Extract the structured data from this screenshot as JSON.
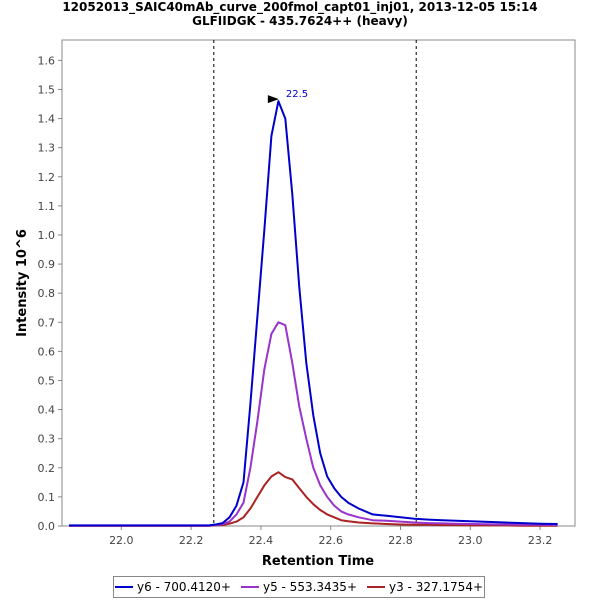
{
  "chart_data": {
    "type": "line",
    "title": "12052013_SAIC40mAb_curve_200fmol_capt01_inj01, 2013-12-05 15:14",
    "subtitle": "GLFIIDGK - 435.7624++ (heavy)",
    "xlabel": "Retention Time",
    "ylabel": "Intensity 10^6",
    "xlim": [
      21.83,
      23.3
    ],
    "ylim": [
      0,
      1.67
    ],
    "x_ticks": [
      22.0,
      22.2,
      22.4,
      22.6,
      22.8,
      23.0,
      23.2
    ],
    "y_ticks": [
      0.0,
      0.1,
      0.2,
      0.3,
      0.4,
      0.5,
      0.6,
      0.7,
      0.8,
      0.9,
      1.0,
      1.1,
      1.2,
      1.3,
      1.4,
      1.5,
      1.6
    ],
    "x_tick_labels": [
      "22.0",
      "22.2",
      "22.4",
      "22.6",
      "22.8",
      "23.0",
      "23.2"
    ],
    "y_tick_labels": [
      "0.0",
      "0.1",
      "0.2",
      "0.3",
      "0.4",
      "0.5",
      "0.6",
      "0.7",
      "0.8",
      "0.9",
      "1.0",
      "1.1",
      "1.2",
      "1.3",
      "1.4",
      "1.5",
      "1.6"
    ],
    "integration_boundaries": [
      22.265,
      22.845
    ],
    "peak_annotation": {
      "x": 22.46,
      "y": 1.46,
      "label": "22.5"
    },
    "legend_position": "bottom",
    "grid": false,
    "series": [
      {
        "name": "y6 - 700.4120+",
        "color": "#0000cc",
        "x": [
          21.85,
          21.9,
          21.95,
          22.0,
          22.05,
          22.1,
          22.15,
          22.2,
          22.25,
          22.27,
          22.29,
          22.31,
          22.33,
          22.35,
          22.37,
          22.39,
          22.41,
          22.43,
          22.45,
          22.47,
          22.49,
          22.51,
          22.53,
          22.55,
          22.57,
          22.59,
          22.61,
          22.63,
          22.65,
          22.68,
          22.72,
          22.76,
          22.8,
          22.84,
          22.88,
          22.92,
          22.96,
          23.0,
          23.05,
          23.1,
          23.15,
          23.2,
          23.25
        ],
        "y": [
          0.002,
          0.002,
          0.002,
          0.002,
          0.002,
          0.002,
          0.002,
          0.002,
          0.002,
          0.005,
          0.01,
          0.03,
          0.07,
          0.15,
          0.42,
          0.72,
          1.02,
          1.34,
          1.46,
          1.4,
          1.14,
          0.82,
          0.56,
          0.38,
          0.25,
          0.17,
          0.13,
          0.1,
          0.08,
          0.06,
          0.04,
          0.035,
          0.03,
          0.025,
          0.022,
          0.02,
          0.018,
          0.016,
          0.014,
          0.012,
          0.01,
          0.008,
          0.007
        ]
      },
      {
        "name": "y5 - 553.3435+",
        "color": "#9933cc",
        "x": [
          21.85,
          21.9,
          21.95,
          22.0,
          22.05,
          22.1,
          22.15,
          22.2,
          22.25,
          22.27,
          22.29,
          22.31,
          22.33,
          22.35,
          22.37,
          22.39,
          22.41,
          22.43,
          22.45,
          22.47,
          22.49,
          22.51,
          22.53,
          22.55,
          22.57,
          22.59,
          22.61,
          22.63,
          22.65,
          22.68,
          22.72,
          22.76,
          22.8,
          22.84,
          22.88,
          22.92,
          22.96,
          23.0,
          23.05,
          23.1,
          23.15,
          23.2,
          23.25
        ],
        "y": [
          0.001,
          0.001,
          0.001,
          0.001,
          0.001,
          0.001,
          0.001,
          0.001,
          0.001,
          0.003,
          0.006,
          0.015,
          0.04,
          0.08,
          0.2,
          0.36,
          0.54,
          0.66,
          0.7,
          0.69,
          0.56,
          0.41,
          0.3,
          0.2,
          0.14,
          0.1,
          0.07,
          0.05,
          0.04,
          0.03,
          0.02,
          0.018,
          0.015,
          0.012,
          0.01,
          0.009,
          0.008,
          0.007,
          0.006,
          0.005,
          0.004,
          0.004,
          0.003
        ]
      },
      {
        "name": "y3 - 327.1754+",
        "color": "#aa2222",
        "x": [
          21.85,
          21.9,
          21.95,
          22.0,
          22.05,
          22.1,
          22.15,
          22.2,
          22.25,
          22.27,
          22.29,
          22.31,
          22.33,
          22.35,
          22.37,
          22.39,
          22.41,
          22.43,
          22.45,
          22.47,
          22.49,
          22.51,
          22.53,
          22.55,
          22.57,
          22.59,
          22.61,
          22.63,
          22.65,
          22.68,
          22.72,
          22.76,
          22.8,
          22.84,
          22.88,
          22.92,
          22.96,
          23.0,
          23.05,
          23.1,
          23.15,
          23.2,
          23.25
        ],
        "y": [
          0.0005,
          0.0005,
          0.0005,
          0.0005,
          0.0005,
          0.0005,
          0.0005,
          0.0005,
          0.0005,
          0.002,
          0.003,
          0.008,
          0.015,
          0.03,
          0.06,
          0.1,
          0.14,
          0.17,
          0.185,
          0.168,
          0.16,
          0.13,
          0.1,
          0.075,
          0.055,
          0.04,
          0.03,
          0.02,
          0.016,
          0.012,
          0.009,
          0.007,
          0.005,
          0.004,
          0.004,
          0.003,
          0.003,
          0.002,
          0.002,
          0.002,
          0.001,
          0.001,
          0.001
        ]
      }
    ]
  }
}
